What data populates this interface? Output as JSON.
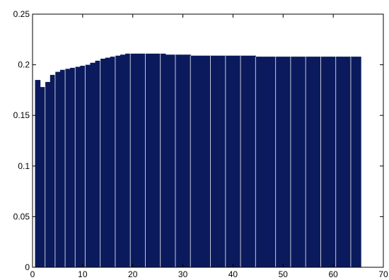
{
  "chart_data": {
    "type": "bar",
    "title": "",
    "xlabel": "",
    "ylabel": "",
    "xlim": [
      0,
      70
    ],
    "ylim": [
      0,
      0.25
    ],
    "grid": false,
    "bar_color": "#0b1a5c",
    "gap_color": "#ffffff",
    "x_ticks": [
      0,
      10,
      20,
      30,
      40,
      50,
      60,
      70
    ],
    "y_ticks": [
      0,
      0.05,
      0.1,
      0.15,
      0.2,
      0.25
    ],
    "x_tick_labels": [
      "0",
      "10",
      "20",
      "30",
      "40",
      "50",
      "60",
      "70"
    ],
    "y_tick_labels": [
      "0",
      "0.05",
      "0.1",
      "0.15",
      "0.2",
      "0.25"
    ],
    "x": [
      1,
      2,
      3,
      4,
      5,
      6,
      7,
      8,
      9,
      10,
      11,
      12,
      13,
      14,
      15,
      16,
      17,
      18,
      19,
      20,
      21,
      22,
      23,
      24,
      25,
      26,
      27,
      28,
      29,
      30,
      31,
      32,
      33,
      34,
      35,
      36,
      37,
      38,
      39,
      40,
      41,
      42,
      43,
      44,
      45,
      46,
      47,
      48,
      49,
      50,
      51,
      52,
      53,
      54,
      55,
      56,
      57,
      58,
      59,
      60,
      61,
      62,
      63,
      64,
      65
    ],
    "values": [
      0.185,
      0.178,
      0.183,
      0.19,
      0.193,
      0.195,
      0.196,
      0.197,
      0.198,
      0.199,
      0.2,
      0.202,
      0.204,
      0.206,
      0.207,
      0.208,
      0.209,
      0.21,
      0.211,
      0.211,
      0.211,
      0.211,
      0.211,
      0.211,
      0.211,
      0.211,
      0.21,
      0.21,
      0.21,
      0.21,
      0.21,
      0.209,
      0.209,
      0.209,
      0.209,
      0.209,
      0.209,
      0.209,
      0.209,
      0.209,
      0.209,
      0.209,
      0.209,
      0.209,
      0.208,
      0.208,
      0.208,
      0.208,
      0.208,
      0.208,
      0.208,
      0.208,
      0.208,
      0.208,
      0.208,
      0.208,
      0.208,
      0.208,
      0.208,
      0.208,
      0.208,
      0.208,
      0.208,
      0.208,
      0.208
    ]
  }
}
